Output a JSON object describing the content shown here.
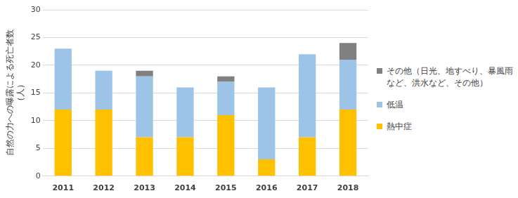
{
  "chart_data": {
    "type": "bar",
    "stacked": true,
    "y_label": [
      "自然の力への曝露による死亡者数",
      "（人）"
    ],
    "categories": [
      "2011",
      "2012",
      "2013",
      "2014",
      "2015",
      "2016",
      "2017",
      "2018"
    ],
    "series": [
      {
        "name": "熱中症",
        "color": "#ffc000",
        "values": [
          12,
          12,
          7,
          7,
          11,
          3,
          7,
          12
        ]
      },
      {
        "name": "低温",
        "color": "#9dc3e6",
        "values": [
          11,
          7,
          11,
          9,
          6,
          13,
          15,
          9
        ]
      },
      {
        "name": "その他（日光、地すべり、暴風雨など、洪水など、その他）",
        "color": "#808080",
        "values": [
          0,
          0,
          1,
          0,
          1,
          0,
          0,
          3
        ]
      }
    ],
    "ylim": [
      0,
      30
    ],
    "yticks": [
      0,
      5,
      10,
      15,
      20,
      25,
      30
    ],
    "grid": true,
    "legend": "right"
  }
}
